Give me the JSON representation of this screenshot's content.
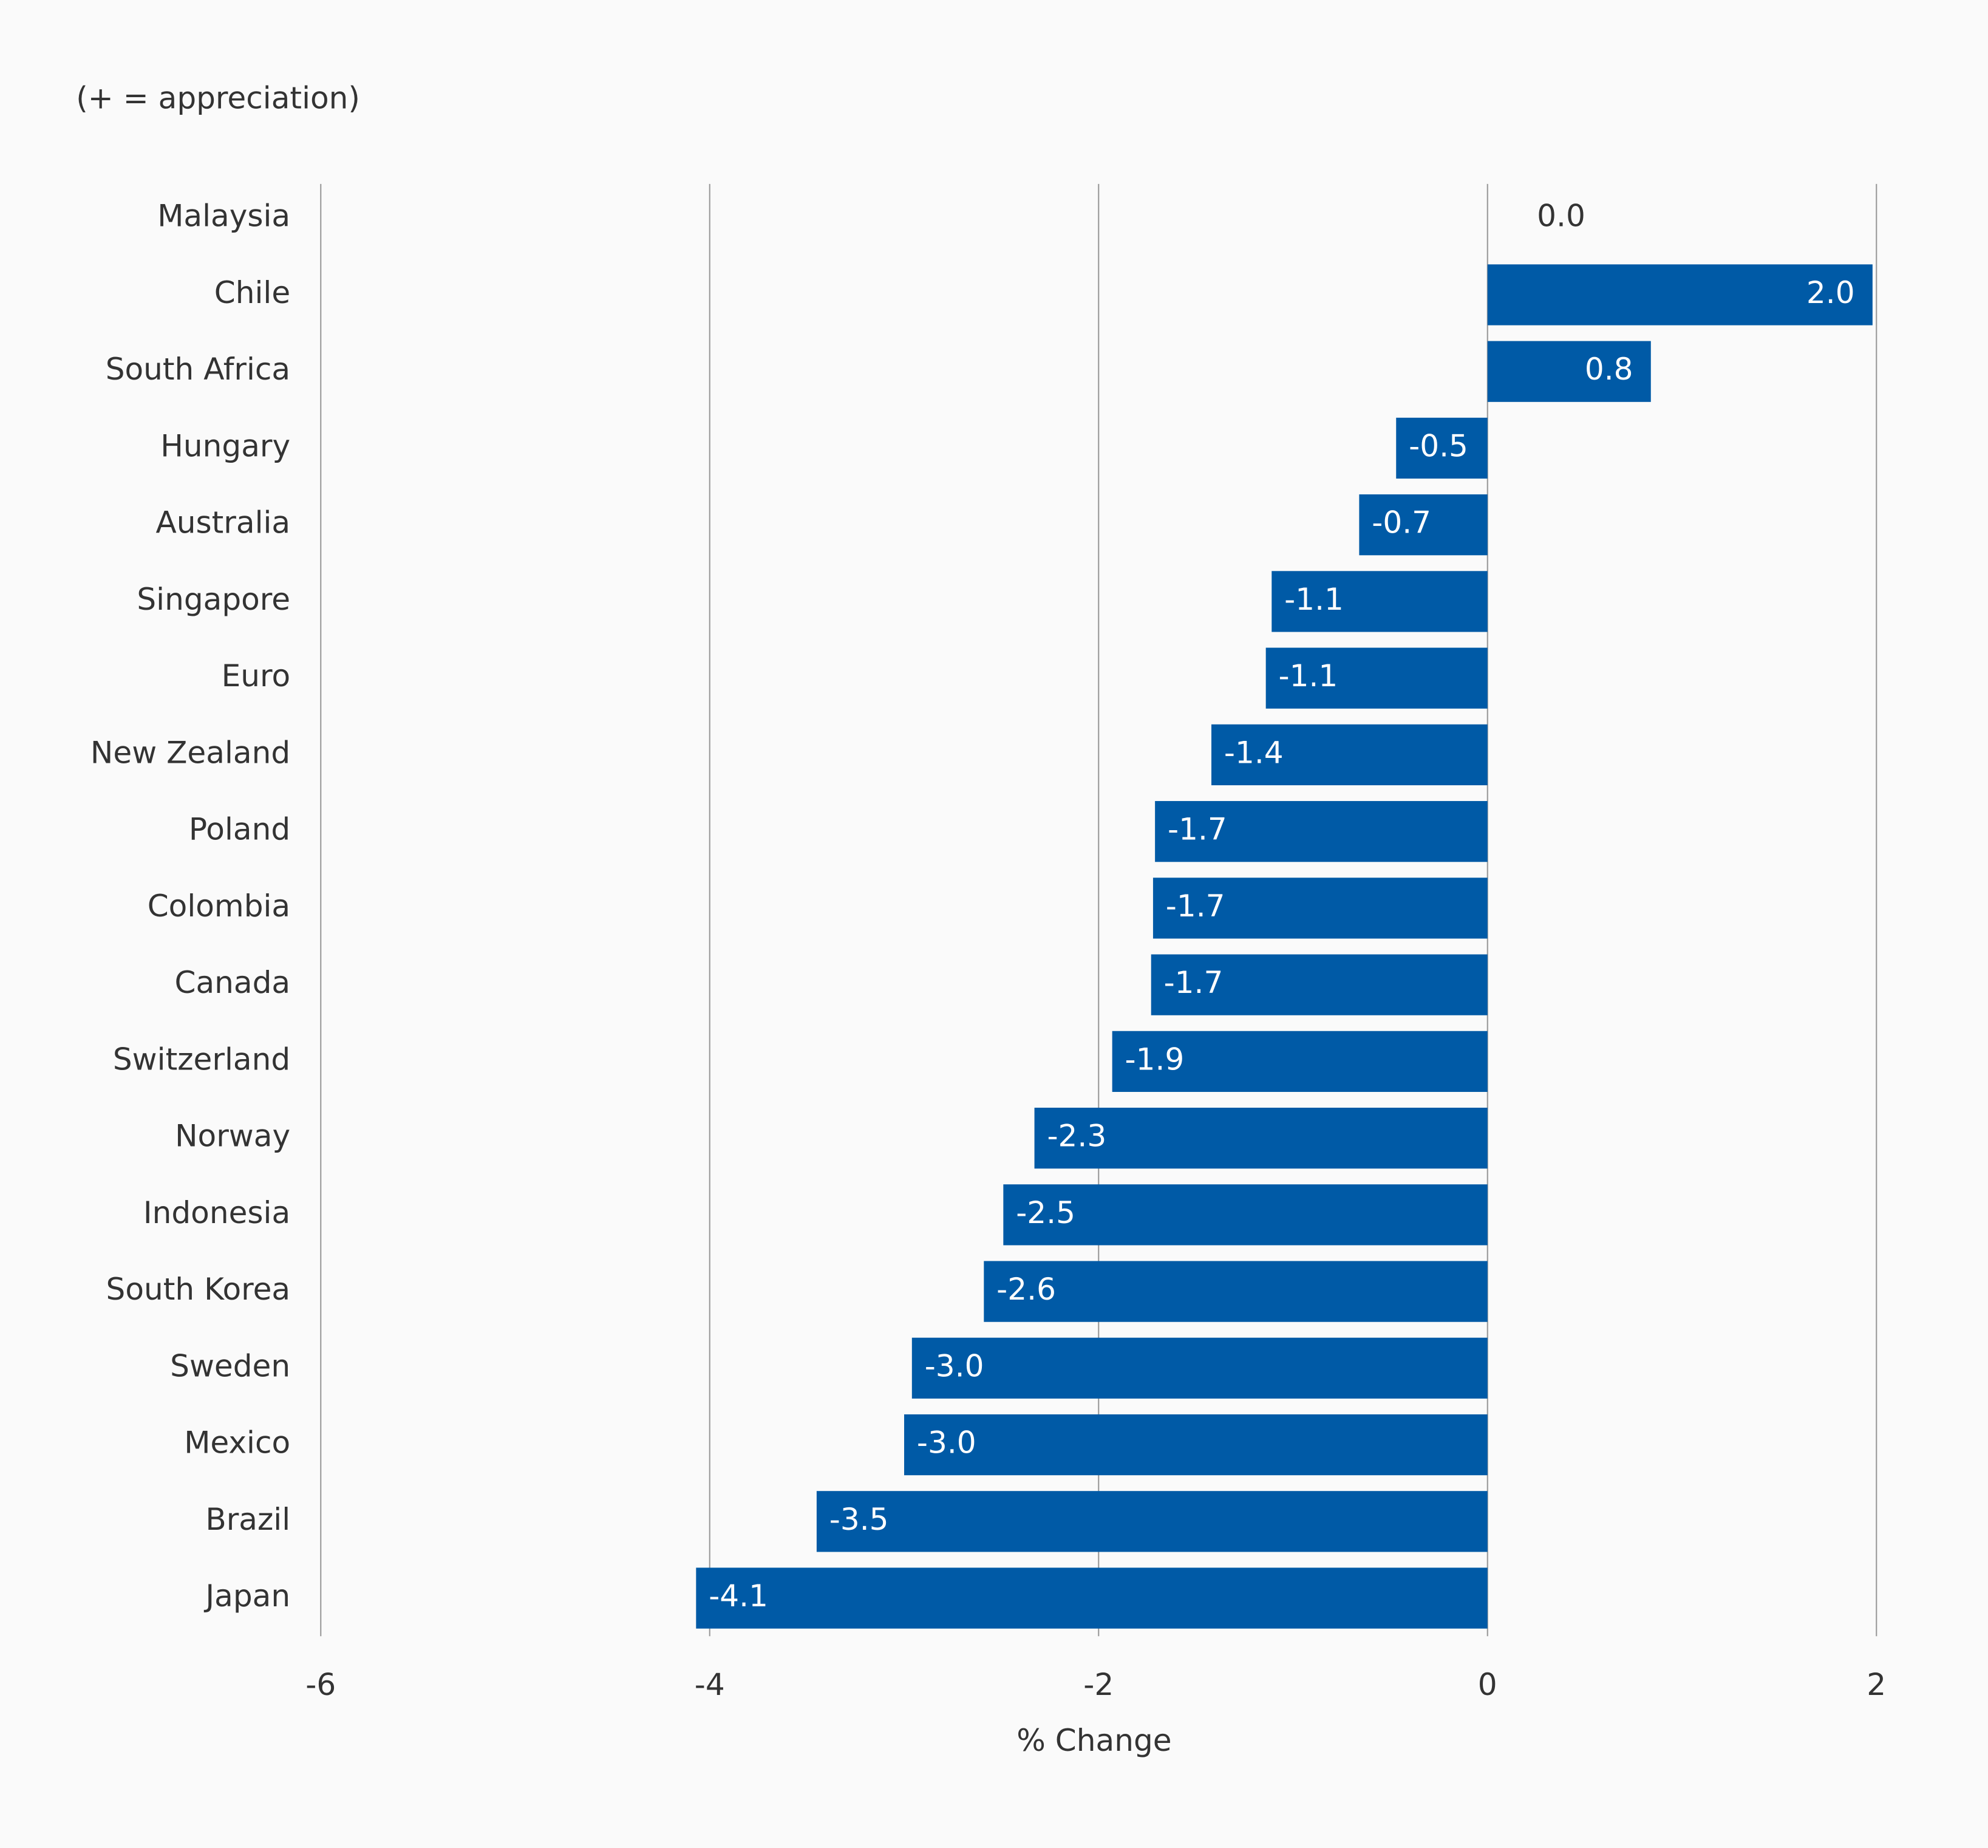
{
  "chart_data": {
    "type": "hbar",
    "subtitle": "(+ = appreciation)",
    "x_label": "% Change",
    "categories": [
      "Malaysia",
      "Chile",
      "South Africa",
      "Hungary",
      "Australia",
      "Singapore",
      "Euro",
      "New Zealand",
      "Poland",
      "Colombia",
      "Canada",
      "Switzerland",
      "Norway",
      "Indonesia",
      "South Korea",
      "Sweden",
      "Mexico",
      "Brazil",
      "Japan"
    ],
    "values": [
      0,
      1.98,
      0.84,
      -0.47,
      -0.66,
      -1.11,
      -1.14,
      -1.42,
      -1.71,
      -1.72,
      -1.73,
      -1.93,
      -2.33,
      -2.49,
      -2.59,
      -2.96,
      -3.0,
      -3.45,
      -4.07
    ],
    "value_labels": [
      "0.0",
      "2.0",
      "0.8",
      "-0.5",
      "-0.7",
      "-1.1",
      "-1.1",
      "-1.4",
      "-1.7",
      "-1.7",
      "-1.7",
      "-1.9",
      "-2.3",
      "-2.5",
      "-2.6",
      "-3.0",
      "-3.0",
      "-3.5",
      "-4.1"
    ],
    "color": "#005aa6",
    "xlim": [
      -6,
      2
    ],
    "xticks": [
      -6,
      -4,
      -2,
      0,
      2
    ],
    "grid": true
  }
}
